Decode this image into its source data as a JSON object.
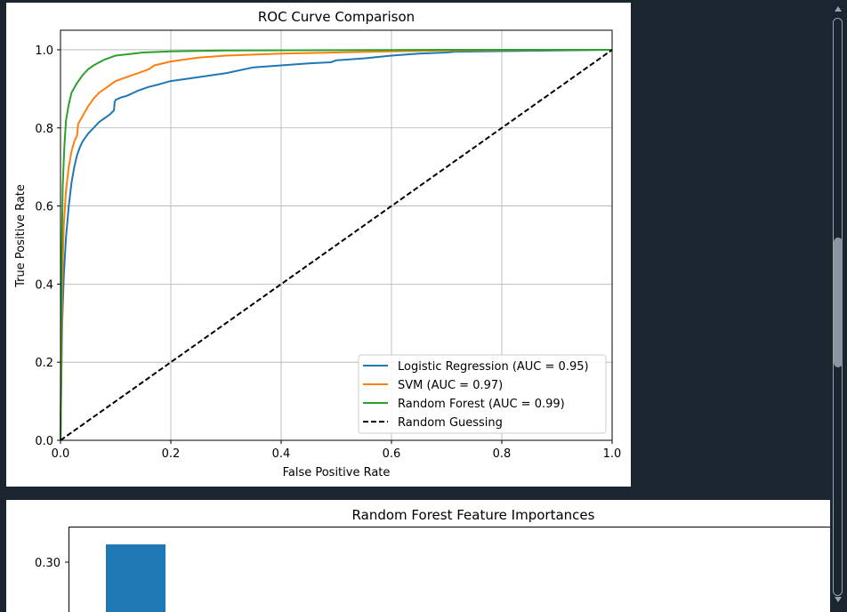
{
  "roc_chart": {
    "title": "ROC Curve Comparison",
    "xlabel": "False Positive Rate",
    "ylabel": "True Positive Rate",
    "x_ticks": [
      "0.0",
      "0.2",
      "0.4",
      "0.6",
      "0.8",
      "1.0"
    ],
    "y_ticks": [
      "0.0",
      "0.2",
      "0.4",
      "0.6",
      "0.8",
      "1.0"
    ],
    "legend": [
      "Logistic Regression (AUC = 0.95)",
      "SVM (AUC = 0.97)",
      "Random Forest (AUC = 0.99)",
      "Random Guessing"
    ]
  },
  "fi_chart": {
    "title": "Random Forest Feature Importances",
    "y_tick": "0.30"
  },
  "colors": {
    "logistic": "#1f77b4",
    "svm": "#ff7f0e",
    "forest": "#2ca02c",
    "guess": "#000000",
    "grid": "#b0b0b0",
    "bar": "#1f77b4",
    "background": "#1b2530"
  },
  "chart_data": [
    {
      "type": "line",
      "title": "ROC Curve Comparison",
      "xlabel": "False Positive Rate",
      "ylabel": "True Positive Rate",
      "xlim": [
        0,
        1
      ],
      "ylim": [
        0,
        1.05
      ],
      "grid": true,
      "legend_position": "lower-right",
      "series": [
        {
          "name": "Logistic Regression (AUC = 0.95)",
          "x": [
            0,
            0.003,
            0.006,
            0.01,
            0.015,
            0.02,
            0.025,
            0.03,
            0.035,
            0.04,
            0.05,
            0.06,
            0.07,
            0.08,
            0.09,
            0.097,
            0.098,
            0.1,
            0.11,
            0.12,
            0.14,
            0.16,
            0.18,
            0.2,
            0.25,
            0.3,
            0.35,
            0.4,
            0.45,
            0.49,
            0.5,
            0.55,
            0.6,
            0.65,
            0.7,
            0.715,
            1.0
          ],
          "y": [
            0,
            0.3,
            0.42,
            0.52,
            0.6,
            0.66,
            0.7,
            0.73,
            0.75,
            0.765,
            0.785,
            0.8,
            0.815,
            0.825,
            0.835,
            0.845,
            0.865,
            0.872,
            0.878,
            0.882,
            0.895,
            0.905,
            0.912,
            0.92,
            0.93,
            0.94,
            0.955,
            0.96,
            0.965,
            0.968,
            0.973,
            0.978,
            0.985,
            0.99,
            0.993,
            0.995,
            1.0
          ]
        },
        {
          "name": "SVM (AUC = 0.97)",
          "x": [
            0,
            0.003,
            0.006,
            0.01,
            0.015,
            0.02,
            0.025,
            0.03,
            0.032,
            0.04,
            0.05,
            0.06,
            0.07,
            0.08,
            0.09,
            0.1,
            0.12,
            0.14,
            0.16,
            0.17,
            0.2,
            0.25,
            0.3,
            0.4,
            0.5,
            0.6,
            0.7,
            0.8,
            1.0
          ],
          "y": [
            0,
            0.4,
            0.55,
            0.64,
            0.7,
            0.74,
            0.765,
            0.78,
            0.81,
            0.83,
            0.855,
            0.875,
            0.89,
            0.9,
            0.91,
            0.92,
            0.93,
            0.94,
            0.95,
            0.96,
            0.97,
            0.98,
            0.985,
            0.99,
            0.993,
            0.996,
            0.998,
            0.999,
            1.0
          ]
        },
        {
          "name": "Random Forest (AUC = 0.99)",
          "x": [
            0,
            0.002,
            0.004,
            0.007,
            0.01,
            0.015,
            0.02,
            0.03,
            0.04,
            0.05,
            0.06,
            0.08,
            0.1,
            0.15,
            0.2,
            0.3,
            0.5,
            0.7,
            1.0
          ],
          "y": [
            0,
            0.45,
            0.65,
            0.75,
            0.82,
            0.86,
            0.89,
            0.915,
            0.935,
            0.95,
            0.96,
            0.975,
            0.985,
            0.993,
            0.996,
            0.998,
            0.999,
            1.0,
            1.0
          ]
        },
        {
          "name": "Random Guessing",
          "x": [
            0,
            1
          ],
          "y": [
            0,
            1
          ],
          "style": "dashed"
        }
      ]
    },
    {
      "type": "bar",
      "title": "Random Forest Feature Importances",
      "ytick_visible": [
        "0.30"
      ],
      "values_visible": [
        0.326
      ],
      "note_partial": true
    }
  ]
}
